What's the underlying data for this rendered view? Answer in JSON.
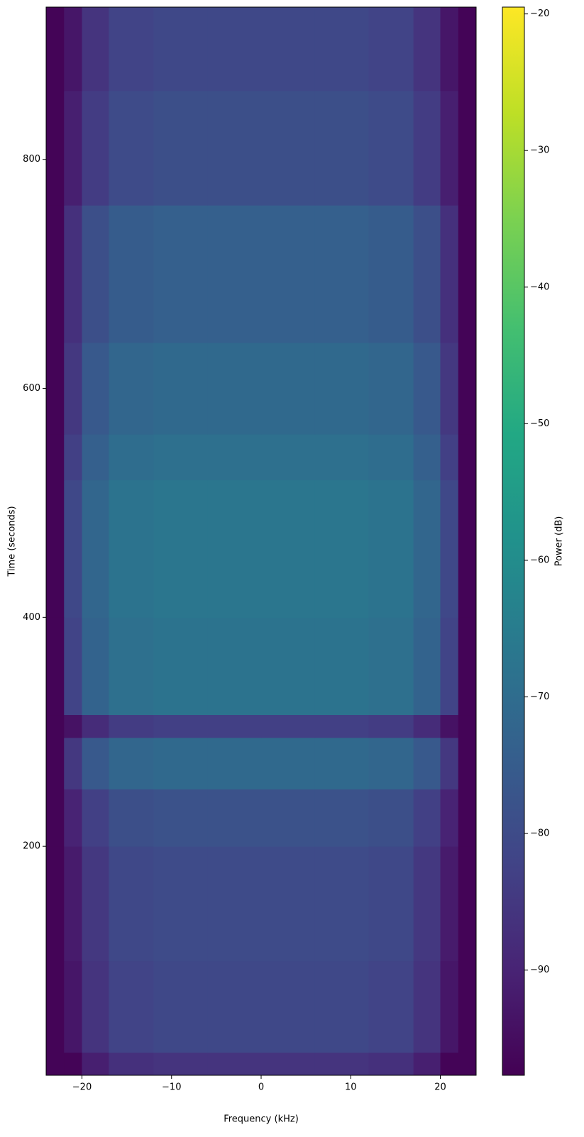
{
  "chart_data": {
    "type": "heatmap",
    "colormap": "viridis",
    "xlabel": "Frequency (kHz)",
    "ylabel": "Time (seconds)",
    "colorbar_label": "Power (dB)",
    "xlim": [
      -24,
      24
    ],
    "ylim": [
      0,
      933
    ],
    "clim": [
      -97.7,
      -19.5
    ],
    "xticks": [
      {
        "value": -20,
        "label": "−20"
      },
      {
        "value": -10,
        "label": "−10"
      },
      0,
      10,
      20
    ],
    "yticks": [
      200,
      400,
      600,
      800
    ],
    "cticks": [
      {
        "value": -90,
        "label": "−90"
      },
      {
        "value": -80,
        "label": "−80"
      },
      {
        "value": -70,
        "label": "−70"
      },
      {
        "value": -60,
        "label": "−60"
      },
      {
        "value": -50,
        "label": "−50"
      },
      {
        "value": -40,
        "label": "−40"
      },
      {
        "value": -30,
        "label": "−30"
      },
      {
        "value": -20,
        "label": "−20"
      }
    ],
    "x_bins": [
      -24,
      -22,
      -20,
      -17,
      -12,
      -6,
      0,
      6,
      12,
      17,
      20,
      22,
      24
    ],
    "y_bins": [
      0,
      20,
      100,
      200,
      250,
      295,
      315,
      400,
      520,
      560,
      640,
      760,
      860,
      933
    ],
    "z": [
      [
        -97,
        -97,
        -91,
        -87,
        -86,
        -86,
        -86,
        -86,
        -87,
        -91,
        -97,
        -97
      ],
      [
        -97,
        -93,
        -86,
        -82,
        -81,
        -81,
        -81,
        -81,
        -82,
        -86,
        -93,
        -97
      ],
      [
        -97,
        -92,
        -85,
        -81,
        -80,
        -80,
        -80,
        -80,
        -81,
        -85,
        -92,
        -97
      ],
      [
        -97,
        -90,
        -83,
        -79,
        -78,
        -78,
        -78,
        -78,
        -79,
        -83,
        -90,
        -97
      ],
      [
        -97,
        -85,
        -76,
        -72,
        -71,
        -71,
        -71,
        -71,
        -72,
        -76,
        -85,
        -97
      ],
      [
        -97,
        -94,
        -88,
        -84,
        -83,
        -83,
        -83,
        -83,
        -84,
        -88,
        -94,
        -97
      ],
      [
        -97,
        -82,
        -73,
        -69,
        -68,
        -68,
        -68,
        -68,
        -69,
        -73,
        -82,
        -97
      ],
      [
        -97,
        -81,
        -72,
        -68,
        -67,
        -67,
        -67,
        -67,
        -68,
        -72,
        -81,
        -97
      ],
      [
        -97,
        -83,
        -74,
        -70,
        -69,
        -69,
        -69,
        -69,
        -70,
        -74,
        -83,
        -97
      ],
      [
        -97,
        -85,
        -76,
        -72,
        -71,
        -71,
        -71,
        -71,
        -72,
        -76,
        -85,
        -97
      ],
      [
        -97,
        -87,
        -79,
        -75,
        -74,
        -74,
        -74,
        -74,
        -75,
        -79,
        -87,
        -97
      ],
      [
        -97,
        -91,
        -84,
        -80,
        -79,
        -79,
        -79,
        -79,
        -80,
        -84,
        -91,
        -97
      ],
      [
        -97,
        -93,
        -86,
        -82,
        -81,
        -81,
        -81,
        -81,
        -82,
        -86,
        -93,
        -97
      ]
    ]
  }
}
